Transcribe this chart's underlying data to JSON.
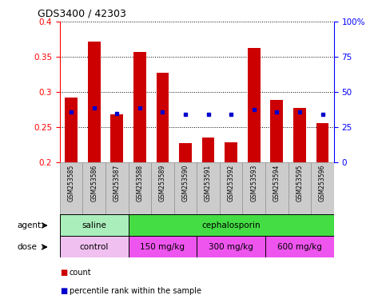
{
  "title": "GDS3400 / 42303",
  "samples": [
    "GSM253585",
    "GSM253586",
    "GSM253587",
    "GSM253588",
    "GSM253589",
    "GSM253590",
    "GSM253591",
    "GSM253592",
    "GSM253593",
    "GSM253594",
    "GSM253595",
    "GSM253596"
  ],
  "count_values": [
    0.292,
    0.372,
    0.268,
    0.357,
    0.327,
    0.228,
    0.236,
    0.229,
    0.362,
    0.289,
    0.277,
    0.256
  ],
  "percentile_values": [
    0.272,
    0.278,
    0.27,
    0.277,
    0.272,
    0.268,
    0.268,
    0.268,
    0.275,
    0.272,
    0.272,
    0.268
  ],
  "ylim": [
    0.2,
    0.4
  ],
  "yticks": [
    0.2,
    0.25,
    0.3,
    0.35,
    0.4
  ],
  "ytick_labels": [
    "0.2",
    "0.25",
    "0.3",
    "0.35",
    "0.4"
  ],
  "right_yticks": [
    0,
    25,
    50,
    75,
    100
  ],
  "right_ytick_labels": [
    "0",
    "25",
    "50",
    "75",
    "100%"
  ],
  "bar_color": "#cc0000",
  "dot_color": "#0000cc",
  "agent_row": [
    {
      "label": "saline",
      "start": 0,
      "end": 3,
      "color": "#aaeebb"
    },
    {
      "label": "cephalosporin",
      "start": 3,
      "end": 12,
      "color": "#44dd44"
    }
  ],
  "dose_row": [
    {
      "label": "control",
      "start": 0,
      "end": 3,
      "color": "#f0c0f0"
    },
    {
      "label": "150 mg/kg",
      "start": 3,
      "end": 6,
      "color": "#ee55ee"
    },
    {
      "label": "300 mg/kg",
      "start": 6,
      "end": 9,
      "color": "#ee55ee"
    },
    {
      "label": "600 mg/kg",
      "start": 9,
      "end": 12,
      "color": "#ee55ee"
    }
  ],
  "legend_count_label": "count",
  "legend_pct_label": "percentile rank within the sample",
  "xlabel_agent": "agent",
  "xlabel_dose": "dose",
  "tick_bg_color": "#cccccc",
  "tick_border_color": "#999999",
  "bar_width": 0.55
}
